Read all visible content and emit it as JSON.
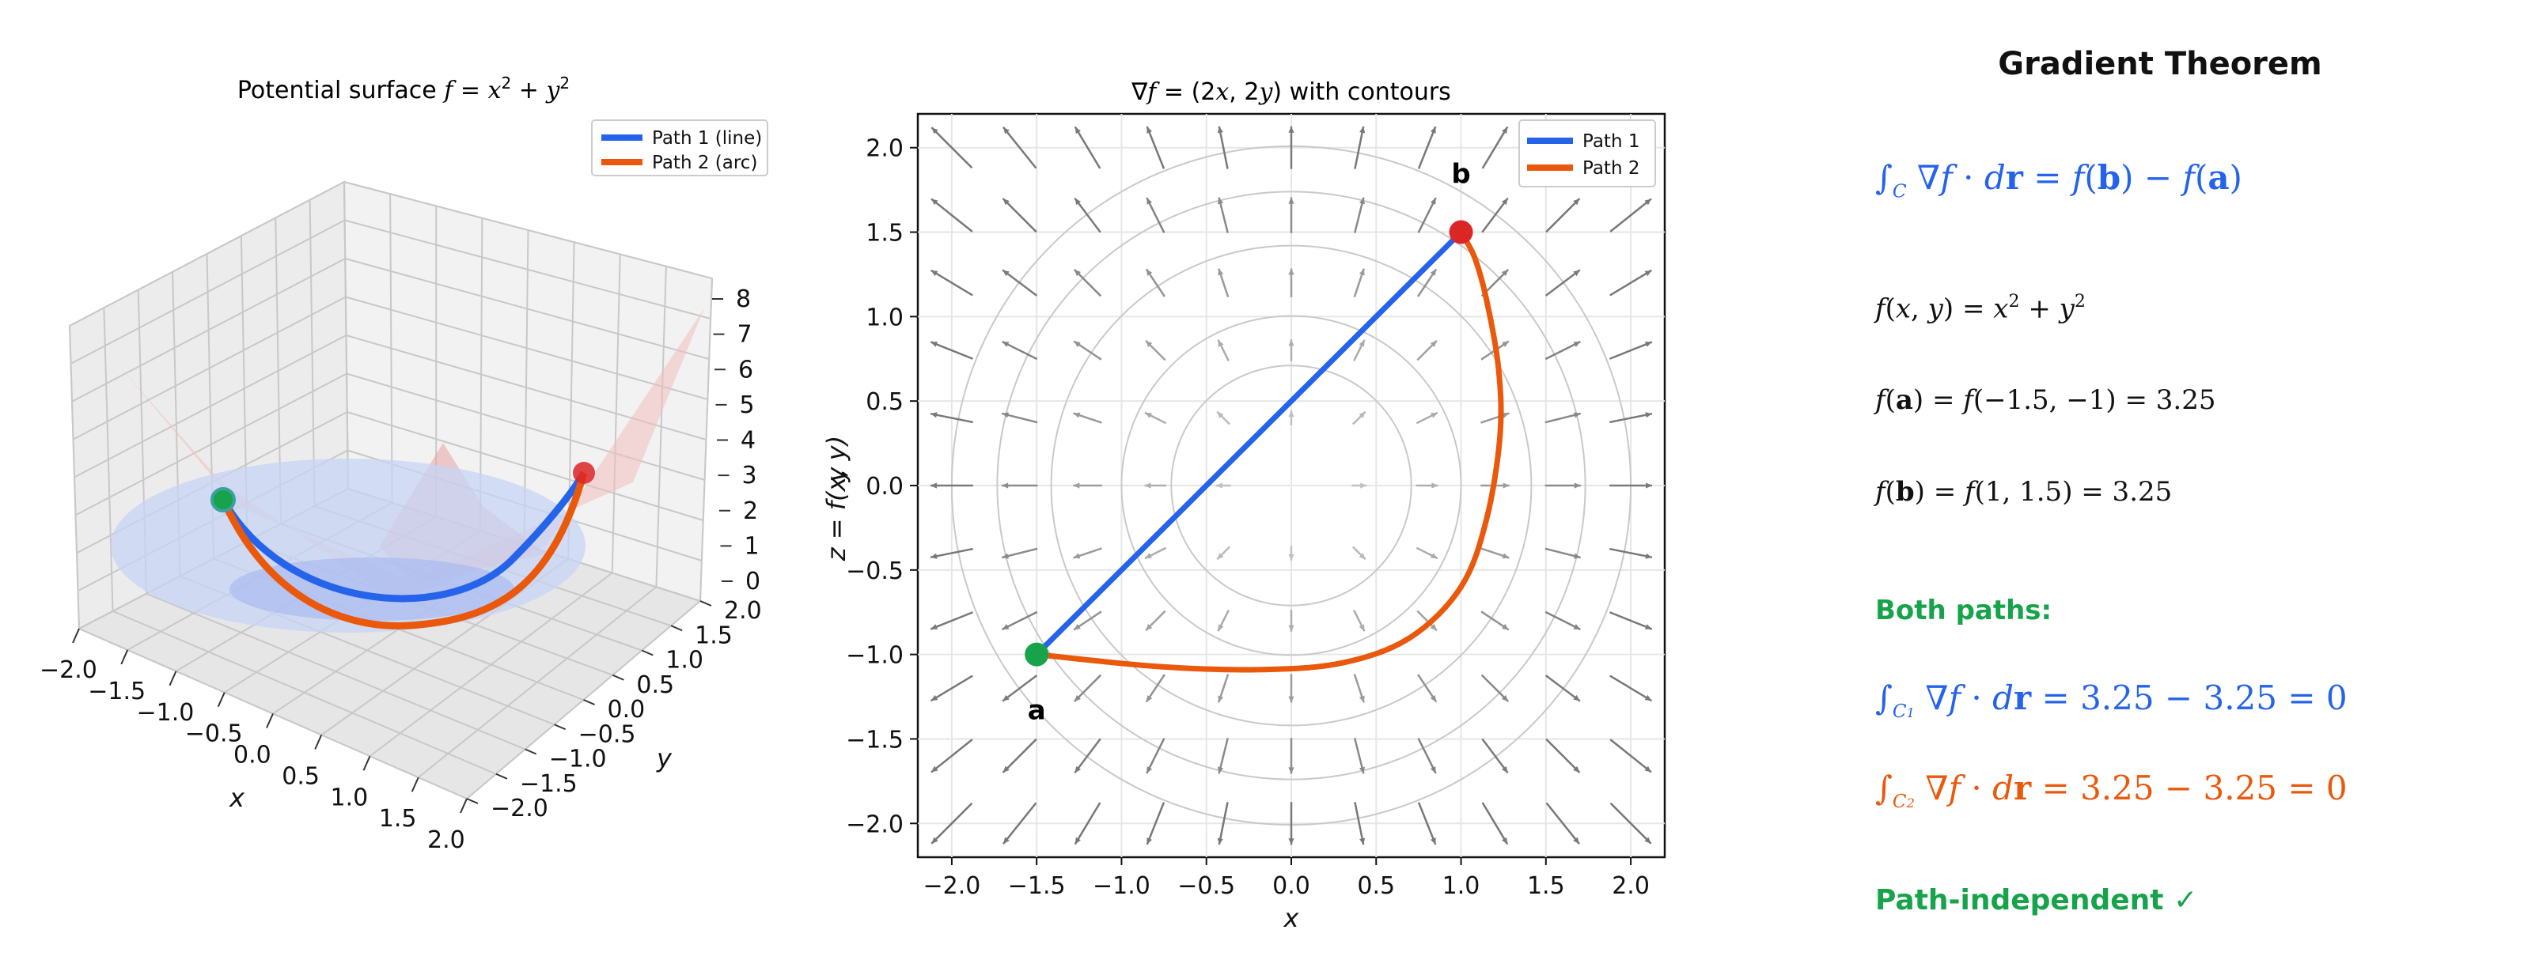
{
  "chart_data": [
    {
      "type": "surface3d",
      "title": "Potential surface f = x² + y²",
      "xlabel": "x",
      "ylabel": "y",
      "zlabel": "z = f(x, y)",
      "xlim": [
        -2,
        2
      ],
      "ylim": [
        -2,
        2
      ],
      "zlim": [
        0,
        8
      ],
      "xticks": [
        "−2.0",
        "−1.5",
        "−1.0",
        "−0.5",
        "0.0",
        "0.5",
        "1.0",
        "1.5",
        "2.0"
      ],
      "yticks": [
        "−2.0",
        "−1.5",
        "−1.0",
        "−0.5",
        "0.0",
        "0.5",
        "1.0",
        "1.5",
        "2.0"
      ],
      "zticks": [
        "0",
        "1",
        "2",
        "3",
        "4",
        "5",
        "6",
        "7",
        "8"
      ],
      "legend": [
        "Path 1 (line)",
        "Path 2 (arc)"
      ],
      "legend_position": "top-right",
      "grid": true,
      "surface": "x^2 + y^2",
      "start_point": [
        -1.5,
        -1,
        3.25
      ],
      "end_point": [
        1,
        1.5,
        3.25
      ],
      "series": [
        {
          "name": "Path 1 (line)",
          "color": "#2563eb",
          "path": "straight line a→b"
        },
        {
          "name": "Path 2 (arc)",
          "color": "#ea580c",
          "path": "arc a→b"
        }
      ]
    },
    {
      "type": "quiver_contour",
      "title": "∇f = (2x, 2y) with contours",
      "xlabel": "x",
      "ylabel": "y",
      "xlim": [
        -2.2,
        2.2
      ],
      "ylim": [
        -2.2,
        2.2
      ],
      "xticks": [
        "−2.0",
        "−1.5",
        "−1.0",
        "−0.5",
        "0.0",
        "0.5",
        "1.0",
        "1.5",
        "2.0"
      ],
      "yticks": [
        "−2.0",
        "−1.5",
        "−1.0",
        "−0.5",
        "0.0",
        "0.5",
        "1.0",
        "1.5",
        "2.0"
      ],
      "legend": [
        "Path 1",
        "Path 2"
      ],
      "legend_position": "top-right",
      "grid": true,
      "contour_levels": [
        0.5,
        1,
        2,
        3,
        4
      ],
      "point_a": {
        "label": "a",
        "x": -1.5,
        "y": -1
      },
      "point_b": {
        "label": "b",
        "x": 1,
        "y": 1.5
      },
      "series": [
        {
          "name": "Path 1",
          "color": "#2563eb",
          "points": [
            [
              -1.5,
              -1
            ],
            [
              1,
              1.5
            ]
          ]
        },
        {
          "name": "Path 2",
          "color": "#ea580c",
          "points": [
            [
              -1.5,
              -1
            ],
            [
              -0.8,
              -1.07
            ],
            [
              -0.2,
              -1.09
            ],
            [
              0.3,
              -1.05
            ],
            [
              0.7,
              -0.9
            ],
            [
              1.0,
              -0.6
            ],
            [
              1.15,
              -0.2
            ],
            [
              1.23,
              0.3
            ],
            [
              1.22,
              0.7
            ],
            [
              1.15,
              1.1
            ],
            [
              1.08,
              1.35
            ],
            [
              1,
              1.5
            ]
          ]
        }
      ]
    }
  ],
  "panel": {
    "title": "Gradient Theorem",
    "both_paths": "Both paths:",
    "conclusion": "Path-independent ✓"
  }
}
